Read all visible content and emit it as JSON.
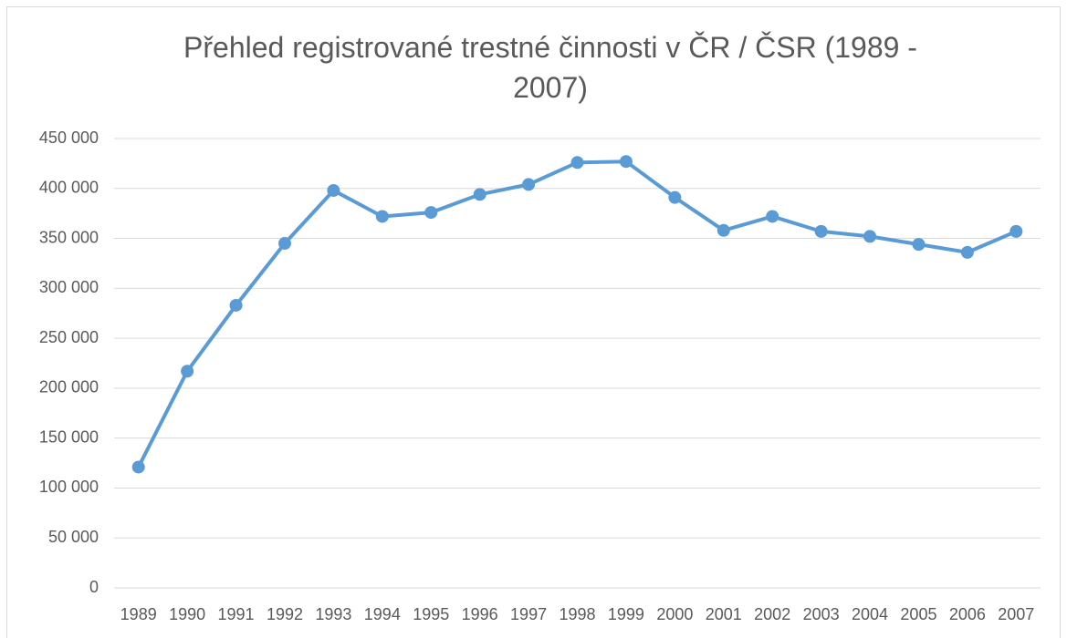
{
  "chart_data": {
    "type": "line",
    "title": "Přehled registrované trestné činnosti v ČR / ČSR (1989 - 2007)",
    "categories": [
      "1989",
      "1990",
      "1991",
      "1992",
      "1993",
      "1994",
      "1995",
      "1996",
      "1997",
      "1998",
      "1999",
      "2000",
      "2001",
      "2002",
      "2003",
      "2004",
      "2005",
      "2006",
      "2007"
    ],
    "series": [
      {
        "color": "#5b9bd5",
        "values": [
          121000,
          217000,
          283000,
          345000,
          398000,
          372000,
          376000,
          394000,
          404000,
          426000,
          427000,
          391000,
          358000,
          372000,
          357000,
          352000,
          344000,
          336000,
          357000
        ]
      }
    ],
    "ylim": [
      0,
      450000
    ],
    "yticks": [
      0,
      {
        "value": 50000,
        "label": "50 000"
      },
      {
        "value": 100000,
        "label": "100 000"
      },
      {
        "value": 150000,
        "label": "150 000"
      },
      {
        "value": 200000,
        "label": "200 000"
      },
      {
        "value": 250000,
        "label": "250 000"
      },
      {
        "value": 300000,
        "label": "300 000"
      },
      {
        "value": 350000,
        "label": "350 000"
      },
      {
        "value": 400000,
        "label": "400 000"
      },
      {
        "value": 450000,
        "label": "450 000"
      }
    ],
    "grid": true
  }
}
